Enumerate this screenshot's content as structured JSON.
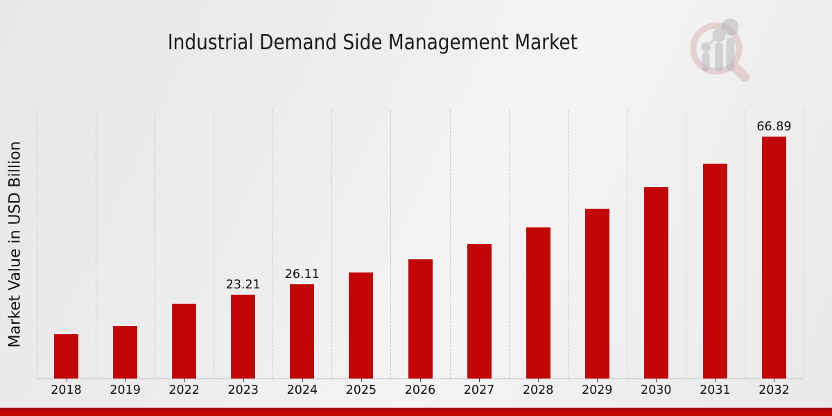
{
  "page": {
    "bottom_band_color": "#c30606"
  },
  "logo": {
    "name": "magnifier-growth-chart-watermark",
    "ring_color": "#cf9d9d",
    "bars_color": "#b3b3b8"
  },
  "chart_data": {
    "type": "bar",
    "title": "Industrial Demand Side Management Market",
    "xlabel": "",
    "ylabel": "Market Value in USD Billion",
    "categories": [
      "2018",
      "2019",
      "2022",
      "2023",
      "2024",
      "2025",
      "2026",
      "2027",
      "2028",
      "2029",
      "2030",
      "2031",
      "2032"
    ],
    "values": [
      12.27,
      14.57,
      20.64,
      23.21,
      26.11,
      29.37,
      33.04,
      37.16,
      41.8,
      47.02,
      52.9,
      59.51,
      66.89
    ],
    "data_labels": {
      "2023": "23.21",
      "2024": "26.11",
      "2032": "66.89"
    },
    "bar_color": "#c10505",
    "label_color": "#111111",
    "ylim": [
      0,
      74.2
    ],
    "grid": "vertical-dashed",
    "legend_position": "none"
  }
}
